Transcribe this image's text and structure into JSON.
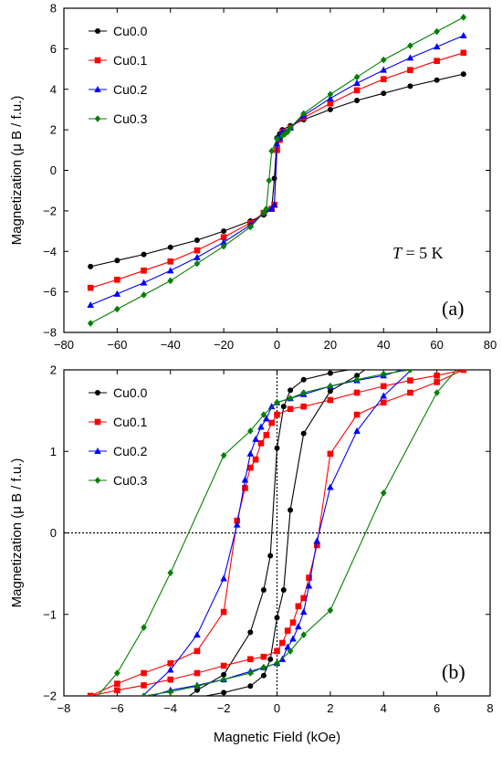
{
  "chart_data": [
    {
      "panel": "(a)",
      "type": "line",
      "xlabel": "",
      "ylabel": "Magnetization (μ B / f.u.)",
      "xlim": [
        -80,
        80
      ],
      "ylim": [
        -8,
        8
      ],
      "xticks": [
        -80,
        -60,
        -40,
        -20,
        0,
        20,
        40,
        60,
        80
      ],
      "yticks": [
        -8,
        -6,
        -4,
        -2,
        0,
        2,
        4,
        6,
        8
      ],
      "annotation_italic": "T",
      "annotation_rest": " = 5 K",
      "legend_position": "top-left",
      "grid": false,
      "series": [
        {
          "name": "Cu0.0",
          "color": "#000000",
          "marker": "circle",
          "x": [
            -70,
            -60,
            -50,
            -40,
            -30,
            -20,
            -10,
            -5,
            -2,
            -1,
            0,
            1,
            2,
            5,
            10,
            20,
            30,
            40,
            50,
            60,
            70
          ],
          "y": [
            -4.75,
            -4.45,
            -4.15,
            -3.8,
            -3.45,
            -3.0,
            -2.5,
            -2.2,
            -1.9,
            -0.4,
            1.6,
            1.8,
            2.0,
            2.2,
            2.5,
            3.0,
            3.45,
            3.8,
            4.15,
            4.45,
            4.75
          ]
        },
        {
          "name": "Cu0.1",
          "color": "#ff0000",
          "marker": "square",
          "x": [
            -70,
            -60,
            -50,
            -40,
            -30,
            -20,
            -10,
            -5,
            -2,
            -1,
            0,
            1,
            2,
            5,
            10,
            20,
            30,
            40,
            50,
            60,
            70
          ],
          "y": [
            -5.8,
            -5.4,
            -4.95,
            -4.5,
            -3.95,
            -3.3,
            -2.6,
            -2.1,
            -1.9,
            -1.7,
            1.0,
            1.5,
            1.9,
            2.1,
            2.6,
            3.3,
            3.95,
            4.5,
            4.95,
            5.4,
            5.8
          ]
        },
        {
          "name": "Cu0.2",
          "color": "#0000ff",
          "marker": "triangle",
          "x": [
            -70,
            -60,
            -50,
            -40,
            -30,
            -20,
            -10,
            -5,
            -2,
            -1,
            0,
            1,
            2,
            5,
            10,
            20,
            30,
            40,
            50,
            60,
            70
          ],
          "y": [
            -6.65,
            -6.1,
            -5.55,
            -4.95,
            -4.3,
            -3.55,
            -2.7,
            -2.1,
            -1.9,
            -1.7,
            1.3,
            1.6,
            1.9,
            2.1,
            2.7,
            3.55,
            4.3,
            4.95,
            5.55,
            6.1,
            6.65
          ]
        },
        {
          "name": "Cu0.3",
          "color": "#008000",
          "marker": "diamond",
          "x": [
            -70,
            -60,
            -50,
            -40,
            -30,
            -20,
            -10,
            -5,
            -4,
            -3,
            -2,
            0,
            2,
            3,
            4,
            5,
            10,
            20,
            30,
            40,
            50,
            60,
            70
          ],
          "y": [
            -7.55,
            -6.85,
            -6.15,
            -5.45,
            -4.6,
            -3.75,
            -2.8,
            -2.1,
            -1.9,
            -0.5,
            0.95,
            1.55,
            1.7,
            1.8,
            1.9,
            2.1,
            2.8,
            3.75,
            4.6,
            5.45,
            6.15,
            6.85,
            7.55
          ]
        }
      ]
    },
    {
      "panel": "(b)",
      "type": "line",
      "xlabel": "Magnetic Field (kOe)",
      "ylabel": "Magnetization (μ B / f.u.)",
      "xlim": [
        -8,
        8
      ],
      "ylim": [
        -2,
        2
      ],
      "xticks": [
        -8,
        -6,
        -4,
        -2,
        0,
        2,
        4,
        6,
        8
      ],
      "yticks": [
        -2,
        -1,
        0,
        1,
        2
      ],
      "legend_position": "top-left",
      "grid": false,
      "series": [
        {
          "name": "Cu0.0",
          "color": "#000000",
          "marker": "circle",
          "x": [
            -3.5,
            -3,
            -2,
            -1,
            -0.5,
            -0.25,
            0,
            0.25,
            0.5,
            1,
            2,
            3.5,
            3,
            2,
            1,
            0.5,
            0.25,
            0,
            -0.25,
            -0.5,
            -1,
            -2,
            -3.5
          ],
          "y": [
            -2.05,
            -1.93,
            -1.74,
            -1.22,
            -0.7,
            -0.28,
            1.04,
            1.55,
            1.75,
            1.88,
            1.96,
            2.05,
            1.93,
            1.74,
            1.22,
            0.28,
            -0.7,
            -1.04,
            -1.55,
            -1.75,
            -1.88,
            -1.96,
            -2.05
          ]
        },
        {
          "name": "Cu0.1",
          "color": "#ff0000",
          "marker": "square",
          "x": [
            -7,
            -6,
            -5,
            -4,
            -3,
            -2,
            -1.5,
            -1.2,
            -1,
            -0.8,
            -0.6,
            -0.4,
            -0.2,
            0,
            0.5,
            1,
            2,
            3,
            4,
            5,
            6,
            7,
            6,
            5,
            4,
            3,
            2,
            1.5,
            1.2,
            1,
            0.8,
            0.6,
            0.4,
            0.2,
            0,
            -0.5,
            -1,
            -2,
            -3,
            -4,
            -5,
            -6,
            -7
          ],
          "y": [
            -2.0,
            -1.85,
            -1.72,
            -1.6,
            -1.45,
            -0.97,
            0.15,
            0.55,
            0.8,
            0.9,
            1.1,
            1.2,
            1.35,
            1.45,
            1.52,
            1.55,
            1.63,
            1.72,
            1.8,
            1.87,
            1.93,
            2.0,
            1.85,
            1.72,
            1.6,
            1.45,
            0.97,
            -0.15,
            -0.55,
            -0.8,
            -0.9,
            -1.1,
            -1.2,
            -1.35,
            -1.45,
            -1.52,
            -1.55,
            -1.63,
            -1.72,
            -1.8,
            -1.87,
            -1.93,
            -2.0
          ]
        },
        {
          "name": "Cu0.2",
          "color": "#0000ff",
          "marker": "triangle",
          "x": [
            -5.2,
            -4,
            -3,
            -2,
            -1.5,
            -1.2,
            -1,
            -0.8,
            -0.6,
            -0.4,
            -0.2,
            0,
            0.5,
            1,
            2,
            3,
            4,
            5.2,
            4,
            3,
            2,
            1.5,
            1.2,
            1,
            0.8,
            0.6,
            0.4,
            0.2,
            0,
            -0.5,
            -1,
            -2,
            -3,
            -4,
            -5.2
          ],
          "y": [
            -2.05,
            -1.68,
            -1.25,
            -0.56,
            0.1,
            0.65,
            0.97,
            1.15,
            1.3,
            1.4,
            1.55,
            1.6,
            1.65,
            1.7,
            1.8,
            1.87,
            1.93,
            2.05,
            1.68,
            1.25,
            0.56,
            -0.1,
            -0.65,
            -0.97,
            -1.15,
            -1.3,
            -1.4,
            -1.55,
            -1.6,
            -1.65,
            -1.7,
            -1.8,
            -1.87,
            -1.93,
            -2.05
          ]
        },
        {
          "name": "Cu0.3",
          "color": "#008000",
          "marker": "diamond",
          "x": [
            -7,
            -6,
            -5,
            -4,
            -2,
            -1,
            -0.5,
            0,
            0.5,
            1,
            2,
            3,
            4,
            5,
            6,
            7,
            6,
            4,
            2,
            1,
            0.5,
            0,
            -0.5,
            -1,
            -2,
            -3,
            -4,
            -5,
            -6,
            -7
          ],
          "y": [
            -2.1,
            -1.72,
            -1.16,
            -0.49,
            0.95,
            1.25,
            1.45,
            1.6,
            1.65,
            1.72,
            1.8,
            1.88,
            1.95,
            2.0,
            2.05,
            2.1,
            1.72,
            0.49,
            -0.95,
            -1.25,
            -1.45,
            -1.6,
            -1.65,
            -1.72,
            -1.8,
            -1.88,
            -1.95,
            -2.0,
            -2.05,
            -2.1
          ]
        }
      ]
    }
  ]
}
